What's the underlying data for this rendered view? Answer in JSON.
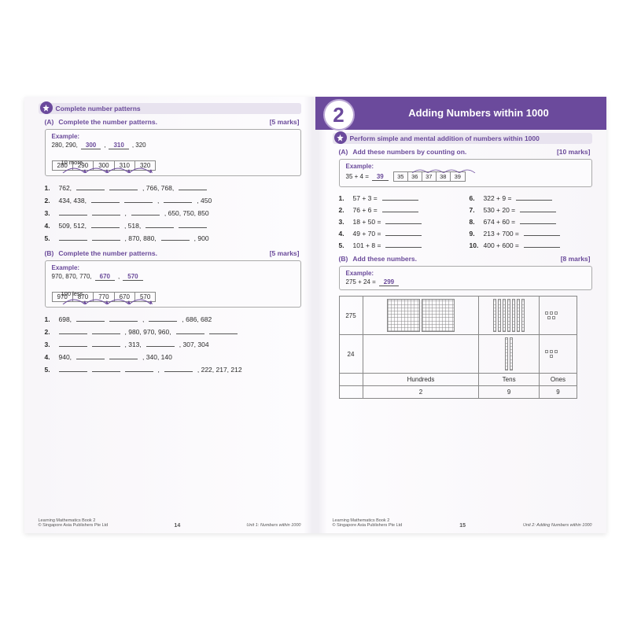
{
  "colors": {
    "brand": "#6b4a9c",
    "brand_light": "#e8e3ef",
    "text": "#2a2a2a",
    "border": "#888888"
  },
  "left": {
    "topic": "Complete number patterns",
    "sectionA": {
      "letter": "(A)",
      "title": "Complete the number patterns.",
      "marks": "[5 marks]",
      "example_label": "Example:",
      "seq_text": "280, 290,",
      "seq_ans1": "300",
      "seq_ans2": "310",
      "seq_tail": ", 320",
      "arc_label": "10 more",
      "cells": [
        "280",
        "290",
        "300",
        "310",
        "320"
      ],
      "q": [
        {
          "n": "1.",
          "parts": [
            "762,",
            "",
            "",
            ", 766, 768,",
            ""
          ]
        },
        {
          "n": "2.",
          "parts": [
            "434, 438,",
            "",
            "",
            ",",
            "",
            ", 450"
          ]
        },
        {
          "n": "3.",
          "parts": [
            "",
            "",
            ",",
            "",
            ", 650, 750, 850"
          ]
        },
        {
          "n": "4.",
          "parts": [
            "509, 512,",
            "",
            ", 518,",
            "",
            ""
          ]
        },
        {
          "n": "5.",
          "parts": [
            "",
            "",
            ", 870, 880,",
            "",
            ", 900"
          ]
        }
      ]
    },
    "sectionB": {
      "letter": "(B)",
      "title": "Complete the number patterns.",
      "marks": "[5 marks]",
      "example_label": "Example:",
      "seq_text": "970, 870, 770,",
      "seq_ans1": "670",
      "seq_ans2": "570",
      "arc_label": "100 less",
      "cells": [
        "970",
        "870",
        "770",
        "670",
        "570"
      ],
      "q": [
        {
          "n": "1.",
          "parts": [
            "698,",
            "",
            "",
            ",",
            "",
            ", 686, 682"
          ]
        },
        {
          "n": "2.",
          "parts": [
            "",
            "",
            ", 980, 970, 960,",
            "",
            ""
          ]
        },
        {
          "n": "3.",
          "parts": [
            "",
            "",
            ", 313,",
            "",
            ", 307, 304"
          ]
        },
        {
          "n": "4.",
          "parts": [
            "940,",
            "",
            "",
            ", 340, 140"
          ]
        },
        {
          "n": "5.",
          "parts": [
            "",
            "",
            "",
            ",",
            "",
            ", 222, 217, 212"
          ]
        }
      ]
    },
    "footer": {
      "book": "Learning Mathematics Book 2",
      "pub": "© Singapore Asia Publishers Pte Ltd",
      "page": "14",
      "unit": "Unit 1: Numbers within 1000"
    }
  },
  "right": {
    "chapter_num": "2",
    "chapter_title": "Adding Numbers within 1000",
    "topic": "Perform simple and mental addition of numbers within 1000",
    "sectionA": {
      "letter": "(A)",
      "title": "Add these numbers by counting on.",
      "marks": "[10 marks]",
      "example_label": "Example:",
      "expr": "35 + 4 =",
      "ans": "39",
      "cells": [
        "35",
        "36",
        "37",
        "38",
        "39"
      ],
      "left_q": [
        {
          "n": "1.",
          "t": "57 + 3 ="
        },
        {
          "n": "2.",
          "t": "76 + 6 ="
        },
        {
          "n": "3.",
          "t": "18 + 50 ="
        },
        {
          "n": "4.",
          "t": "49 + 70 ="
        },
        {
          "n": "5.",
          "t": "101 + 8 ="
        }
      ],
      "right_q": [
        {
          "n": "6.",
          "t": "322 + 9 ="
        },
        {
          "n": "7.",
          "t": "530 + 20 ="
        },
        {
          "n": "8.",
          "t": "674 + 60 ="
        },
        {
          "n": "9.",
          "t": "213 + 700 ="
        },
        {
          "n": "10.",
          "t": "400 + 600 ="
        }
      ]
    },
    "sectionB": {
      "letter": "(B)",
      "title": "Add these numbers.",
      "marks": "[8 marks]",
      "example_label": "Example:",
      "expr": "275 + 24 =",
      "ans": "299",
      "rows": {
        "r1_label": "275",
        "r2_label": "24",
        "headers": [
          "Hundreds",
          "Tens",
          "Ones"
        ],
        "totals": [
          "2",
          "9",
          "9"
        ]
      }
    },
    "footer": {
      "book": "Learning Mathematics Book 2",
      "pub": "© Singapore Asia Publishers Pte Ltd",
      "page": "15",
      "unit": "Unit 2: Adding Numbers within 1000"
    }
  }
}
